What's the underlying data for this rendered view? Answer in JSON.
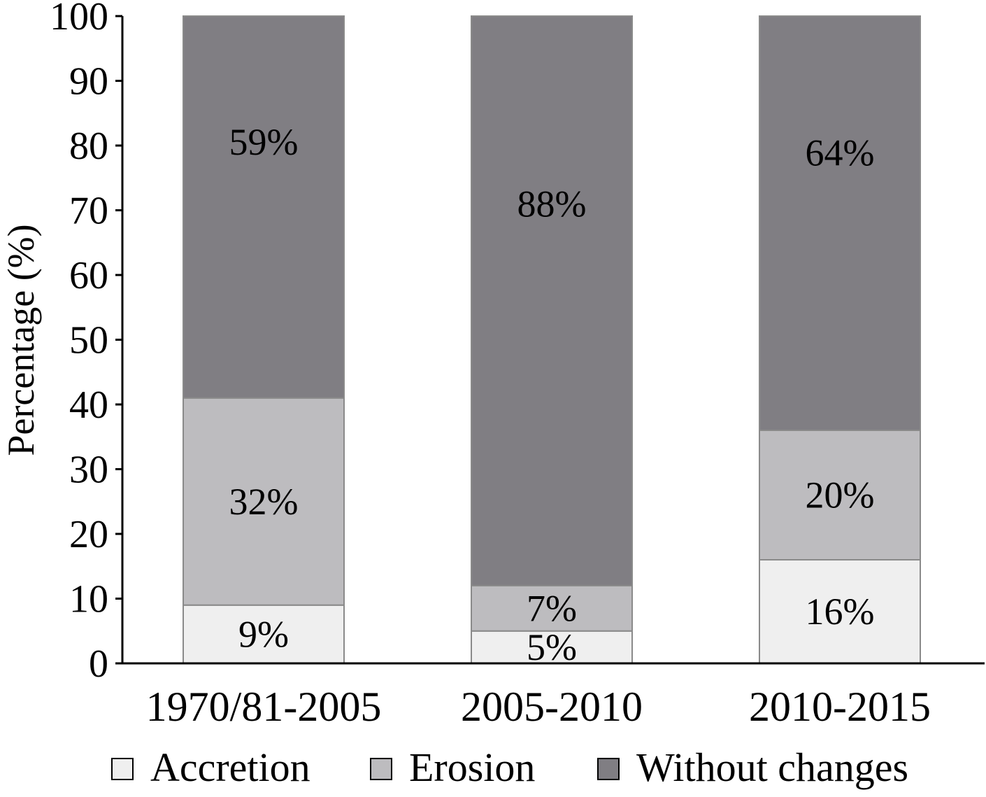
{
  "chart_data": {
    "type": "bar",
    "stacked": true,
    "ylabel": "Percentage (%)",
    "xlabel": "",
    "ylim": [
      0,
      100
    ],
    "yticks": [
      0,
      10,
      20,
      30,
      40,
      50,
      60,
      70,
      80,
      90,
      100
    ],
    "grid": false,
    "legend_position": "bottom",
    "categories": [
      "1970/81-2005",
      "2005-2010",
      "2010-2015"
    ],
    "series": [
      {
        "name": "Accretion",
        "color": "#efefef",
        "values": [
          9,
          5,
          16
        ],
        "labels": [
          "9%",
          "5%",
          "16%"
        ]
      },
      {
        "name": "Erosion",
        "color": "#bdbcbf",
        "values": [
          32,
          7,
          20
        ],
        "labels": [
          "32%",
          "7%",
          "20%"
        ]
      },
      {
        "name": "Without changes",
        "color": "#807e83",
        "values": [
          59,
          88,
          64
        ],
        "labels": [
          "59%",
          "88%",
          "64%"
        ]
      }
    ]
  }
}
